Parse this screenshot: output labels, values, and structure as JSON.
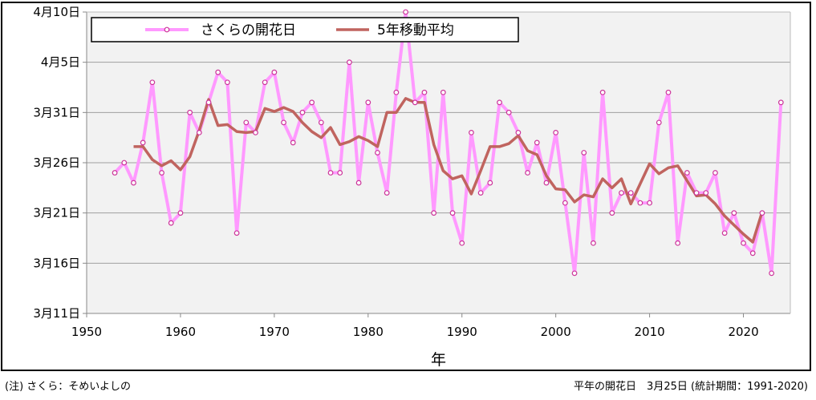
{
  "colors": {
    "sakura": "#FF99FF",
    "sakura_marker": "#CC3399",
    "moving_avg": "#C0645F",
    "plot_bg": "#F2F2F2",
    "grid": "#A0A0A0"
  },
  "footer": {
    "note": "(注) さくら：そめいよしの",
    "normal": "平年の開花日　3月25日 (統計期間：1991-2020)"
  },
  "chart_data": {
    "type": "line",
    "xlabel": "年",
    "ylabel": "",
    "xlim": [
      1950,
      2025
    ],
    "ylim": [
      0,
      30
    ],
    "x_ticks": [
      1950,
      1960,
      1970,
      1980,
      1990,
      2000,
      2010,
      2020
    ],
    "y_ticks": [
      {
        "value": 0,
        "label": "3月11日"
      },
      {
        "value": 5,
        "label": "3月16日"
      },
      {
        "value": 10,
        "label": "3月21日"
      },
      {
        "value": 15,
        "label": "3月26日"
      },
      {
        "value": 20,
        "label": "3月31日"
      },
      {
        "value": 25,
        "label": "4月5日"
      },
      {
        "value": 30,
        "label": "4月10日"
      }
    ],
    "grid": true,
    "legend_position": "top-left",
    "series": [
      {
        "name": "さくらの開花日",
        "style": "line+markers",
        "x": [
          1953,
          1954,
          1955,
          1956,
          1957,
          1958,
          1959,
          1960,
          1961,
          1962,
          1963,
          1964,
          1965,
          1966,
          1967,
          1968,
          1969,
          1970,
          1971,
          1972,
          1973,
          1974,
          1975,
          1976,
          1977,
          1978,
          1979,
          1980,
          1981,
          1982,
          1983,
          1984,
          1985,
          1986,
          1987,
          1988,
          1989,
          1990,
          1991,
          1992,
          1993,
          1994,
          1995,
          1996,
          1997,
          1998,
          1999,
          2000,
          2001,
          2002,
          2003,
          2004,
          2005,
          2006,
          2007,
          2008,
          2009,
          2010,
          2011,
          2012,
          2013,
          2014,
          2015,
          2016,
          2017,
          2018,
          2019,
          2020,
          2021,
          2022,
          2023,
          2024
        ],
        "values": [
          14,
          15,
          13,
          17,
          23,
          14,
          9,
          10,
          20,
          18,
          21,
          24,
          23,
          8,
          19,
          18,
          23,
          24,
          19,
          17,
          20,
          21,
          19,
          14,
          14,
          25,
          13,
          21,
          16,
          12,
          22,
          30,
          21,
          22,
          10,
          22,
          10,
          7,
          18,
          12,
          13,
          21,
          20,
          18,
          14,
          17,
          13,
          18,
          11,
          4,
          16,
          7,
          22,
          10,
          12,
          12,
          11,
          11,
          19,
          22,
          7,
          14,
          12,
          12,
          14,
          8,
          10,
          7,
          6,
          10,
          4,
          21
        ]
      },
      {
        "name": "5年移動平均",
        "style": "line",
        "x": [
          1955,
          1956,
          1957,
          1958,
          1959,
          1960,
          1961,
          1962,
          1963,
          1964,
          1965,
          1966,
          1967,
          1968,
          1969,
          1970,
          1971,
          1972,
          1973,
          1974,
          1975,
          1976,
          1977,
          1978,
          1979,
          1980,
          1981,
          1982,
          1983,
          1984,
          1985,
          1986,
          1987,
          1988,
          1989,
          1990,
          1991,
          1992,
          1993,
          1994,
          1995,
          1996,
          1997,
          1998,
          1999,
          2000,
          2001,
          2002,
          2003,
          2004,
          2005,
          2006,
          2007,
          2008,
          2009,
          2010,
          2011,
          2012,
          2013,
          2014,
          2015,
          2016,
          2017,
          2018,
          2019,
          2020,
          2021,
          2022
        ],
        "values": [
          16.6,
          16.6,
          15.3,
          14.7,
          15.2,
          14.3,
          15.6,
          18.2,
          21.3,
          18.7,
          18.8,
          18.1,
          18.0,
          18.1,
          20.4,
          20.1,
          20.5,
          20.1,
          19.0,
          18.1,
          17.5,
          18.5,
          16.8,
          17.1,
          17.6,
          17.2,
          16.6,
          20.0,
          20.0,
          21.4,
          21.0,
          21.0,
          16.8,
          14.2,
          13.4,
          13.7,
          11.9,
          14.2,
          16.6,
          16.6,
          16.9,
          17.7,
          16.2,
          15.8,
          13.7,
          12.4,
          12.3,
          11.1,
          11.8,
          11.6,
          13.4,
          12.5,
          13.4,
          10.9,
          12.9,
          14.9,
          13.9,
          14.5,
          14.7,
          13.2,
          11.7,
          11.8,
          10.9,
          9.7,
          8.8,
          7.9,
          7.1,
          10.1
        ]
      }
    ]
  }
}
